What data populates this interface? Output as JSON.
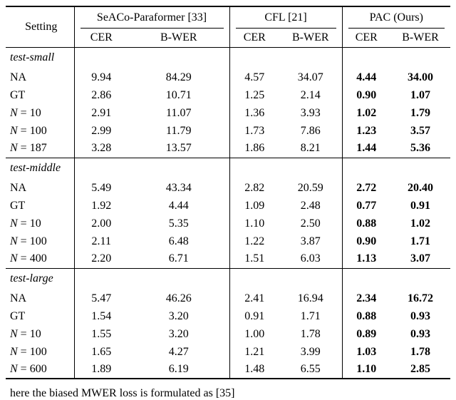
{
  "page": {
    "footer_text": "here the biased MWER loss is formulated as [35]"
  },
  "table": {
    "setting_header": "Setting",
    "groups": [
      {
        "label": "SeACo-Paraformer [33]",
        "sub": [
          "CER",
          "B-WER"
        ]
      },
      {
        "label": "CFL [21]",
        "sub": [
          "CER",
          "B-WER"
        ]
      },
      {
        "label": "PAC (Ours)",
        "sub": [
          "CER",
          "B-WER"
        ]
      }
    ],
    "sections": [
      {
        "title": "test-small",
        "rows": [
          {
            "var": "",
            "rest": "NA",
            "values": [
              "9.94",
              "84.29",
              "4.57",
              "34.07",
              "4.44",
              "34.00"
            ]
          },
          {
            "var": "",
            "rest": "GT",
            "values": [
              "2.86",
              "10.71",
              "1.25",
              "2.14",
              "0.90",
              "1.07"
            ]
          },
          {
            "var": "N",
            "rest": " = 10",
            "values": [
              "2.91",
              "11.07",
              "1.36",
              "3.93",
              "1.02",
              "1.79"
            ]
          },
          {
            "var": "N",
            "rest": " = 100",
            "values": [
              "2.99",
              "11.79",
              "1.73",
              "7.86",
              "1.23",
              "3.57"
            ]
          },
          {
            "var": "N",
            "rest": " = 187",
            "values": [
              "3.28",
              "13.57",
              "1.86",
              "8.21",
              "1.44",
              "5.36"
            ]
          }
        ]
      },
      {
        "title": "test-middle",
        "rows": [
          {
            "var": "",
            "rest": "NA",
            "values": [
              "5.49",
              "43.34",
              "2.82",
              "20.59",
              "2.72",
              "20.40"
            ]
          },
          {
            "var": "",
            "rest": "GT",
            "values": [
              "1.92",
              "4.44",
              "1.09",
              "2.48",
              "0.77",
              "0.91"
            ]
          },
          {
            "var": "N",
            "rest": " = 10",
            "values": [
              "2.00",
              "5.35",
              "1.10",
              "2.50",
              "0.88",
              "1.02"
            ]
          },
          {
            "var": "N",
            "rest": " = 100",
            "values": [
              "2.11",
              "6.48",
              "1.22",
              "3.87",
              "0.90",
              "1.71"
            ]
          },
          {
            "var": "N",
            "rest": " = 400",
            "values": [
              "2.20",
              "6.71",
              "1.51",
              "6.03",
              "1.13",
              "3.07"
            ]
          }
        ]
      },
      {
        "title": "test-large",
        "rows": [
          {
            "var": "",
            "rest": "NA",
            "values": [
              "5.47",
              "46.26",
              "2.41",
              "16.94",
              "2.34",
              "16.72"
            ]
          },
          {
            "var": "",
            "rest": "GT",
            "values": [
              "1.54",
              "3.20",
              "0.91",
              "1.71",
              "0.88",
              "0.93"
            ]
          },
          {
            "var": "N",
            "rest": " = 10",
            "values": [
              "1.55",
              "3.20",
              "1.00",
              "1.78",
              "0.89",
              "0.93"
            ]
          },
          {
            "var": "N",
            "rest": " = 100",
            "values": [
              "1.65",
              "4.27",
              "1.21",
              "3.99",
              "1.03",
              "1.78"
            ]
          },
          {
            "var": "N",
            "rest": " = 600",
            "values": [
              "1.89",
              "6.19",
              "1.48",
              "6.55",
              "1.10",
              "2.85"
            ]
          }
        ]
      }
    ]
  }
}
